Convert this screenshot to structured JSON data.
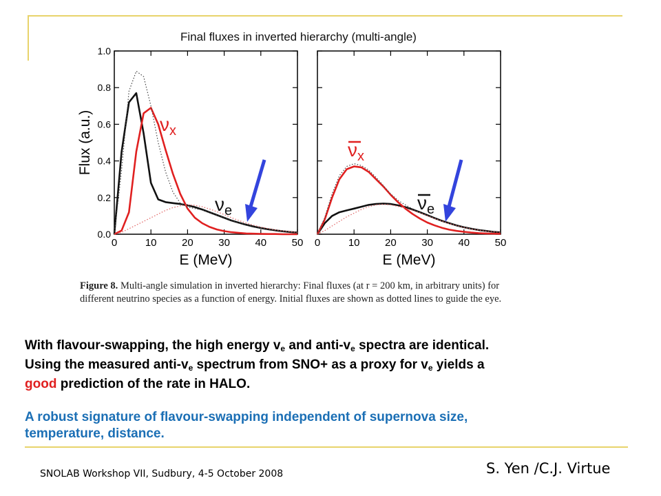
{
  "figure": {
    "title": "Final fluxes in inverted hierarchy (multi-angle)",
    "caption_label": "Figure 8.",
    "caption_text": " Multi-angle simulation in inverted hierarchy: Final fluxes (at r = 200 km, in arbitrary units) for different neutrino species as a function of energy. Initial fluxes are shown as dotted lines to guide the eye."
  },
  "chart_data": [
    {
      "type": "line",
      "title": "",
      "xlabel": "E (MeV)",
      "ylabel": "Flux (a.u.)",
      "xlim": [
        0,
        50
      ],
      "ylim": [
        0,
        1.0
      ],
      "xticks": [
        "0",
        "10",
        "20",
        "30",
        "40",
        "50"
      ],
      "yticks": [
        "0.0",
        "0.2",
        "0.4",
        "0.6",
        "0.8",
        "1.0"
      ],
      "grid": false,
      "x": [
        0,
        2,
        4,
        6,
        8,
        10,
        12,
        14,
        16,
        18,
        20,
        22,
        24,
        26,
        28,
        30,
        32,
        34,
        36,
        38,
        40,
        42,
        44,
        46,
        48,
        50
      ],
      "series": [
        {
          "name": "νe",
          "color": "#111111",
          "style": "solid",
          "values": [
            0.0,
            0.45,
            0.72,
            0.77,
            0.55,
            0.28,
            0.19,
            0.175,
            0.17,
            0.165,
            0.158,
            0.148,
            0.135,
            0.12,
            0.105,
            0.09,
            0.075,
            0.063,
            0.052,
            0.042,
            0.034,
            0.027,
            0.021,
            0.016,
            0.012,
            0.009
          ]
        },
        {
          "name": "νx",
          "color": "#e02020",
          "style": "solid",
          "values": [
            0.0,
            0.02,
            0.12,
            0.45,
            0.66,
            0.69,
            0.6,
            0.46,
            0.33,
            0.22,
            0.14,
            0.09,
            0.06,
            0.04,
            0.026,
            0.017,
            0.011,
            0.007,
            0.004,
            0.003,
            0.002,
            0.001,
            0.001,
            0.0,
            0.0,
            0.0
          ]
        },
        {
          "name": "",
          "color": "#444444",
          "style": "dotted",
          "values": [
            0.0,
            0.35,
            0.78,
            0.89,
            0.86,
            0.7,
            0.5,
            0.34,
            0.23,
            0.17,
            0.148,
            0.14,
            0.132,
            0.12,
            0.105,
            0.09,
            0.075,
            0.063,
            0.052,
            0.042,
            0.034,
            0.027,
            0.021,
            0.016,
            0.012,
            0.009
          ]
        },
        {
          "name": "",
          "color": "#e06060",
          "style": "dotted",
          "values": [
            0.0,
            0.01,
            0.03,
            0.05,
            0.07,
            0.09,
            0.11,
            0.13,
            0.145,
            0.155,
            0.16,
            0.158,
            0.15,
            0.138,
            0.123,
            0.107,
            0.09,
            0.075,
            0.061,
            0.049,
            0.039,
            0.031,
            0.024,
            0.018,
            0.014,
            0.01
          ]
        }
      ]
    },
    {
      "type": "line",
      "title": "",
      "xlabel": "E (MeV)",
      "ylabel": "",
      "xlim": [
        0,
        50
      ],
      "ylim": [
        0,
        1.0
      ],
      "xticks": [
        "0",
        "10",
        "20",
        "30",
        "40",
        "50"
      ],
      "yticks": [],
      "grid": false,
      "x": [
        0,
        2,
        4,
        6,
        8,
        10,
        12,
        14,
        16,
        18,
        20,
        22,
        24,
        26,
        28,
        30,
        32,
        34,
        36,
        38,
        40,
        42,
        44,
        46,
        48,
        50
      ],
      "series": [
        {
          "name": "νe (anti)",
          "color": "#111111",
          "style": "solid",
          "values": [
            0.0,
            0.06,
            0.1,
            0.12,
            0.13,
            0.14,
            0.15,
            0.16,
            0.165,
            0.167,
            0.165,
            0.158,
            0.148,
            0.135,
            0.12,
            0.104,
            0.088,
            0.073,
            0.06,
            0.048,
            0.038,
            0.03,
            0.023,
            0.018,
            0.013,
            0.01
          ]
        },
        {
          "name": "νx (anti)",
          "color": "#e02020",
          "style": "solid",
          "values": [
            0.0,
            0.08,
            0.2,
            0.3,
            0.355,
            0.37,
            0.365,
            0.34,
            0.3,
            0.26,
            0.215,
            0.175,
            0.14,
            0.11,
            0.085,
            0.064,
            0.048,
            0.035,
            0.025,
            0.018,
            0.013,
            0.009,
            0.006,
            0.004,
            0.003,
            0.002
          ]
        },
        {
          "name": "",
          "color": "#444444",
          "style": "dotted",
          "values": [
            0.0,
            0.09,
            0.22,
            0.32,
            0.37,
            0.385,
            0.375,
            0.35,
            0.31,
            0.265,
            0.22,
            0.185,
            0.16,
            0.138,
            0.12,
            0.104,
            0.088,
            0.073,
            0.06,
            0.048,
            0.038,
            0.03,
            0.023,
            0.018,
            0.013,
            0.01
          ]
        },
        {
          "name": "",
          "color": "#e06060",
          "style": "dotted",
          "values": [
            0.0,
            0.02,
            0.045,
            0.07,
            0.095,
            0.115,
            0.135,
            0.15,
            0.16,
            0.163,
            0.16,
            0.152,
            0.142,
            0.13,
            0.116,
            0.1,
            0.085,
            0.071,
            0.058,
            0.047,
            0.037,
            0.029,
            0.022,
            0.017,
            0.013,
            0.01
          ]
        }
      ]
    }
  ],
  "labels": {
    "left_nue": "ν",
    "left_nue_sub": "e",
    "left_nux": "ν",
    "left_nux_sub": "x",
    "right_nue": "ν",
    "right_nue_sub": "e",
    "right_nux": "ν",
    "right_nux_sub": "x"
  },
  "text": {
    "p1a": "With flavour-swapping, the high energy v",
    "p1b": "e",
    "p1c": " and anti-v",
    "p1d": "e",
    "p1e": " spectra are identical.",
    "p1f": "Using the measured anti-v",
    "p1g": "e",
    "p1h": " spectrum from SNO+ as a proxy for v",
    "p1i": "e",
    "p1j": " yields a",
    "p1k": "good",
    "p1l": " prediction of the rate in HALO.",
    "p2": "A robust signature of flavour-swapping independent of supernova size, temperature, distance."
  },
  "footer": {
    "left": "SNOLAB Workshop VII, Sudbury, 4-5 October 2008",
    "right": "S. Yen /C.J. Virtue"
  },
  "colors": {
    "accent_line": "#e8d36a",
    "arrow": "#3344dd",
    "red_text": "#e01f1f",
    "blue_text": "#1b6fb5"
  }
}
